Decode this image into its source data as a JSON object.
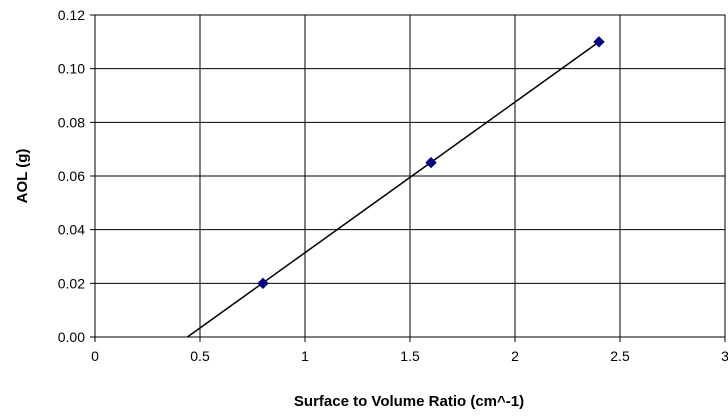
{
  "chart_data": {
    "type": "scatter",
    "title": "",
    "xlabel": "Surface to Volume Ratio (cm^-1)",
    "ylabel": "AOL (g)",
    "xlim": [
      0,
      3
    ],
    "ylim": [
      0,
      0.12
    ],
    "x_ticks": [
      "0",
      "0.5",
      "1",
      "1.5",
      "2",
      "2.5",
      "3"
    ],
    "y_ticks": [
      "0.00",
      "0.02",
      "0.04",
      "0.06",
      "0.08",
      "0.10",
      "0.12"
    ],
    "grid": true,
    "legend": "none",
    "series": [
      {
        "x": [
          0.8,
          1.6,
          2.4
        ],
        "y": [
          0.02,
          0.065,
          0.11
        ],
        "marker": "diamond",
        "color": "#00007f"
      }
    ],
    "trendline": {
      "type": "linear",
      "x": [
        0.44,
        2.4
      ],
      "y": [
        0.0,
        0.11
      ],
      "color": "#000000"
    }
  }
}
